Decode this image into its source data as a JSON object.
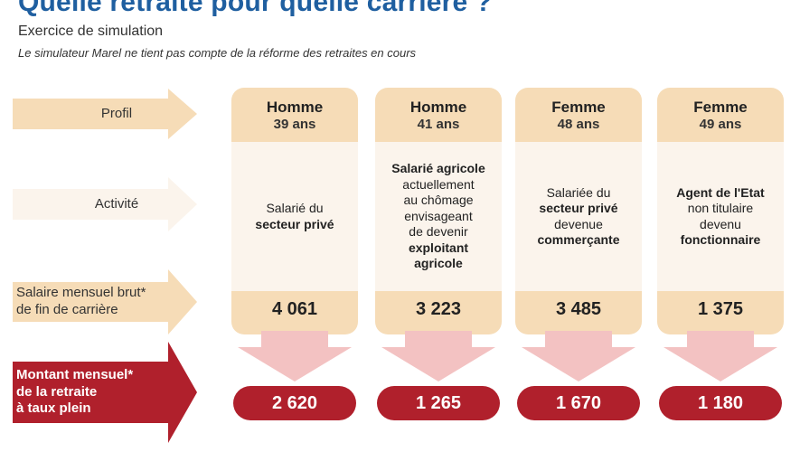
{
  "header": {
    "title": "Quelle retraite pour quelle carrière ?",
    "subtitle": "Exercice de simulation",
    "note": "Le simulateur Marel ne tient pas compte de la réforme des retraites en cours"
  },
  "rows": {
    "profil": "Profil",
    "activite": "Activité",
    "salaire_line1": "Salaire mensuel brut*",
    "salaire_line2": "de fin de carrière",
    "montant_line1": "Montant mensuel*",
    "montant_line2": "de la retraite",
    "montant_line3": "à taux plein"
  },
  "profiles": [
    {
      "gender": "Homme",
      "age": "39 ans",
      "activity": [
        [
          "Salarié du",
          false
        ],
        [
          "secteur privé",
          true
        ]
      ],
      "salary": "4 061",
      "pension": "2 620"
    },
    {
      "gender": "Homme",
      "age": "41 ans",
      "activity": [
        [
          "Salarié agricole",
          true
        ],
        [
          "actuellement",
          false
        ],
        [
          "au chômage",
          false
        ],
        [
          "envisageant",
          false
        ],
        [
          "de devenir",
          false
        ],
        [
          "exploitant",
          true
        ],
        [
          "agricole",
          true
        ]
      ],
      "salary": "3 223",
      "pension": "1 265"
    },
    {
      "gender": "Femme",
      "age": "48 ans",
      "activity": [
        [
          "Salariée du",
          false
        ],
        [
          "secteur privé",
          true
        ],
        [
          "devenue",
          false
        ],
        [
          "commerçante",
          true
        ]
      ],
      "salary": "3 485",
      "pension": "1 670"
    },
    {
      "gender": "Femme",
      "age": "49 ans",
      "activity": [
        [
          "Agent de l'Etat",
          true
        ],
        [
          "non titulaire",
          false
        ],
        [
          "devenu",
          false
        ],
        [
          "fonctionnaire",
          true
        ]
      ],
      "salary": "1 375",
      "pension": "1 180"
    }
  ],
  "colors": {
    "title": "#1f5fa0",
    "arrow_light": "#f6dcb7",
    "arrow_red": "#b0202c",
    "panel_header": "#f6dcb7",
    "panel_body": "#fbf4ec"
  }
}
